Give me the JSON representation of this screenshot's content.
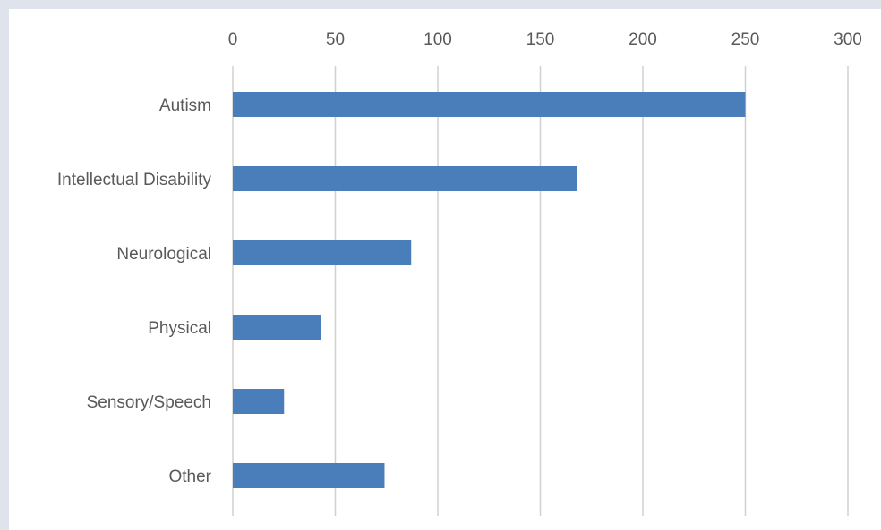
{
  "chart_data": {
    "type": "bar",
    "orientation": "horizontal",
    "categories": [
      "Autism",
      "Intellectual Disability",
      "Neurological",
      "Physical",
      "Sensory/Speech",
      "Other"
    ],
    "values": [
      250,
      168,
      87,
      43,
      25,
      74
    ],
    "title": "",
    "xlabel": "",
    "ylabel": "",
    "xlim": [
      0,
      300
    ],
    "xticks": [
      "0",
      "50",
      "100",
      "150",
      "200",
      "250",
      "300"
    ],
    "tick_values": [
      0,
      50,
      100,
      150,
      200,
      250,
      300
    ],
    "x_axis_position": "top",
    "grid": true,
    "legend": "none",
    "bar_color": "#4a7ebb",
    "grid_color": "#d0d0d0",
    "text_color": "#595959",
    "background_color": "#ffffff",
    "page_border_color": "#dfe3ec"
  }
}
